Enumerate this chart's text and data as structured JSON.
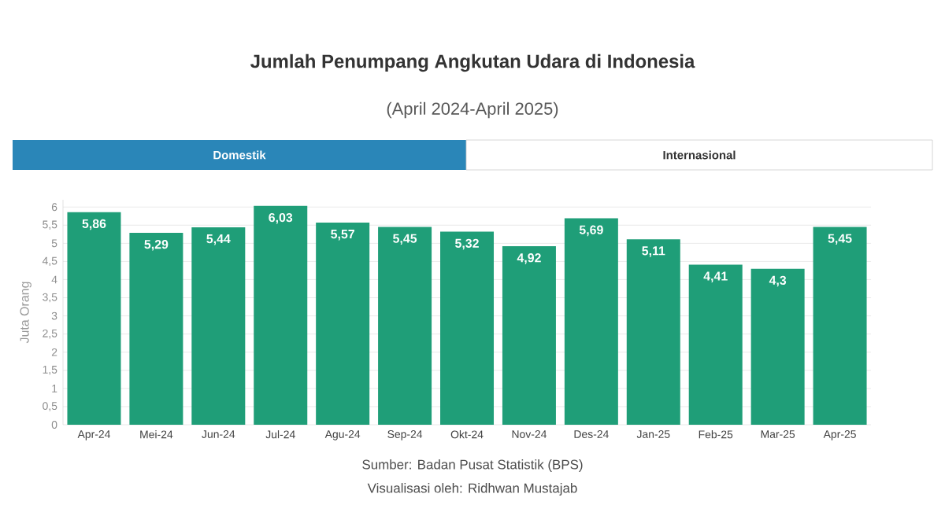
{
  "chart_data": {
    "type": "bar",
    "title": "Jumlah Penumpang Angkutan Udara di Indonesia",
    "subtitle": "(April 2024-April 2025)",
    "ylabel": "Juta Orang",
    "categories": [
      "Apr-24",
      "Mei-24",
      "Jun-24",
      "Jul-24",
      "Agu-24",
      "Sep-24",
      "Okt-24",
      "Nov-24",
      "Des-24",
      "Jan-25",
      "Feb-25",
      "Mar-25",
      "Apr-25"
    ],
    "values": [
      5.86,
      5.29,
      5.44,
      6.03,
      5.57,
      5.45,
      5.32,
      4.92,
      5.69,
      5.11,
      4.41,
      4.3,
      5.45
    ],
    "value_labels": [
      "5,86",
      "5,29",
      "5,44",
      "6,03",
      "5,57",
      "5,45",
      "5,32",
      "4,92",
      "5,69",
      "5,11",
      "4,41",
      "4,3",
      "5,45"
    ],
    "color": "#1f9e78",
    "ylim": [
      0,
      6.2
    ],
    "yticks": [
      0,
      {
        "value": 0.5,
        "label": "0,5"
      },
      1,
      {
        "value": 1.5,
        "label": "1,5"
      },
      2,
      {
        "value": 2.5,
        "label": "2,5"
      },
      3,
      {
        "value": 3.5,
        "label": "3,5"
      },
      4,
      {
        "value": 4.5,
        "label": "4,5"
      },
      5,
      {
        "value": 5.5,
        "label": "5,5"
      },
      6
    ],
    "grid": "y",
    "annotations": [
      "Domestik",
      "Internasional",
      "Sumber: Badan Pusat Statistik (BPS)",
      "Visualisasi oleh: Ridhwan Mustajab"
    ]
  }
}
